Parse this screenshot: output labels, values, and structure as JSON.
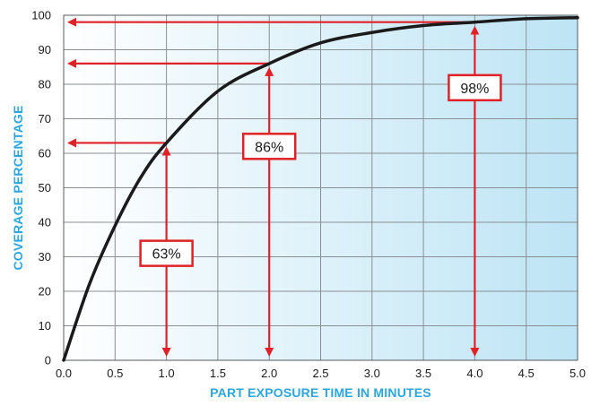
{
  "chart_data": {
    "type": "line",
    "title": "",
    "xlabel": "PART EXPOSURE TIME IN MINUTES",
    "ylabel": "COVERAGE PERCENTAGE",
    "xlim": [
      0,
      5
    ],
    "ylim": [
      0,
      100
    ],
    "xticks": [
      "0.0",
      "0.5",
      "1.0",
      "1.5",
      "2.0",
      "2.5",
      "3.0",
      "3.5",
      "4.0",
      "4.5",
      "5.0"
    ],
    "yticks": [
      "0",
      "10",
      "20",
      "30",
      "40",
      "50",
      "60",
      "70",
      "80",
      "90",
      "100"
    ],
    "grid": true,
    "series": [
      {
        "x": [
          0.0,
          0.25,
          0.5,
          0.75,
          1.0,
          1.5,
          2.0,
          2.5,
          3.0,
          3.5,
          4.0,
          4.5,
          5.0
        ],
        "values": [
          0,
          22,
          39,
          53,
          63,
          78,
          86,
          92,
          95,
          97,
          98,
          99,
          99.3
        ]
      }
    ],
    "annotations": [
      {
        "label": "63%",
        "x": 1.0,
        "y": 63,
        "label_y": 31
      },
      {
        "label": "86%",
        "x": 2.0,
        "y": 86,
        "label_y": 62
      },
      {
        "label": "98%",
        "x": 4.0,
        "y": 98,
        "label_y": 79
      }
    ]
  },
  "colors": {
    "curve": "#1a1a1a",
    "arrow": "#e02228",
    "grid": "#8a8f94",
    "axis_title": "#2ba6de",
    "bg_left": "#ffffff",
    "bg_right": "#bde4f5"
  }
}
